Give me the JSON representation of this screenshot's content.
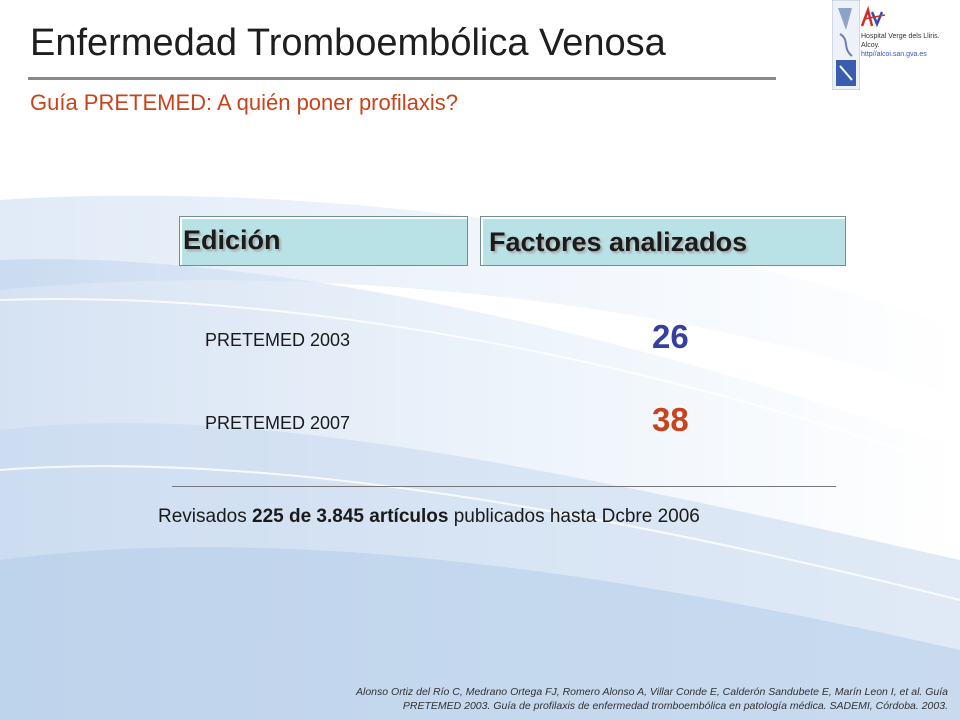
{
  "title": "Enfermedad Tromboembólica Venosa",
  "subtitle": "Guía PRETEMED: A quién poner profilaxis?",
  "logo": {
    "line1": "Hospital Verge dels Lliris.",
    "line2": "Alcoy.",
    "url": "http//alcoi.san.gva.es"
  },
  "table": {
    "header_edition": "Edición",
    "header_factors": "Factores analizados",
    "rows": [
      {
        "edition": "PRETEMED 2003",
        "factors": "26",
        "color": "#343fa0"
      },
      {
        "edition": "PRETEMED 2007",
        "factors": "38",
        "color": "#c8431b"
      }
    ]
  },
  "summary": {
    "pre": "Revisados ",
    "bold": "225 de 3.845 artículos",
    "post": " publicados  hasta Dcbre 2006"
  },
  "citation": {
    "line1": "Alonso Ortiz del Río C, Medrano Ortega FJ, Romero Alonso A, Villar Conde E, Calderón Sandubete E, Marín Leon I, et al. Guía",
    "line2": "PRETEMED 2003. Guía de profilaxis de enfermedad tromboembólica en patología médica. SADEMI, Córdoba.  2003."
  },
  "colors": {
    "accent_orange": "#c8431b",
    "accent_blue": "#343fa0",
    "header_fill": "#b9e2e6"
  }
}
